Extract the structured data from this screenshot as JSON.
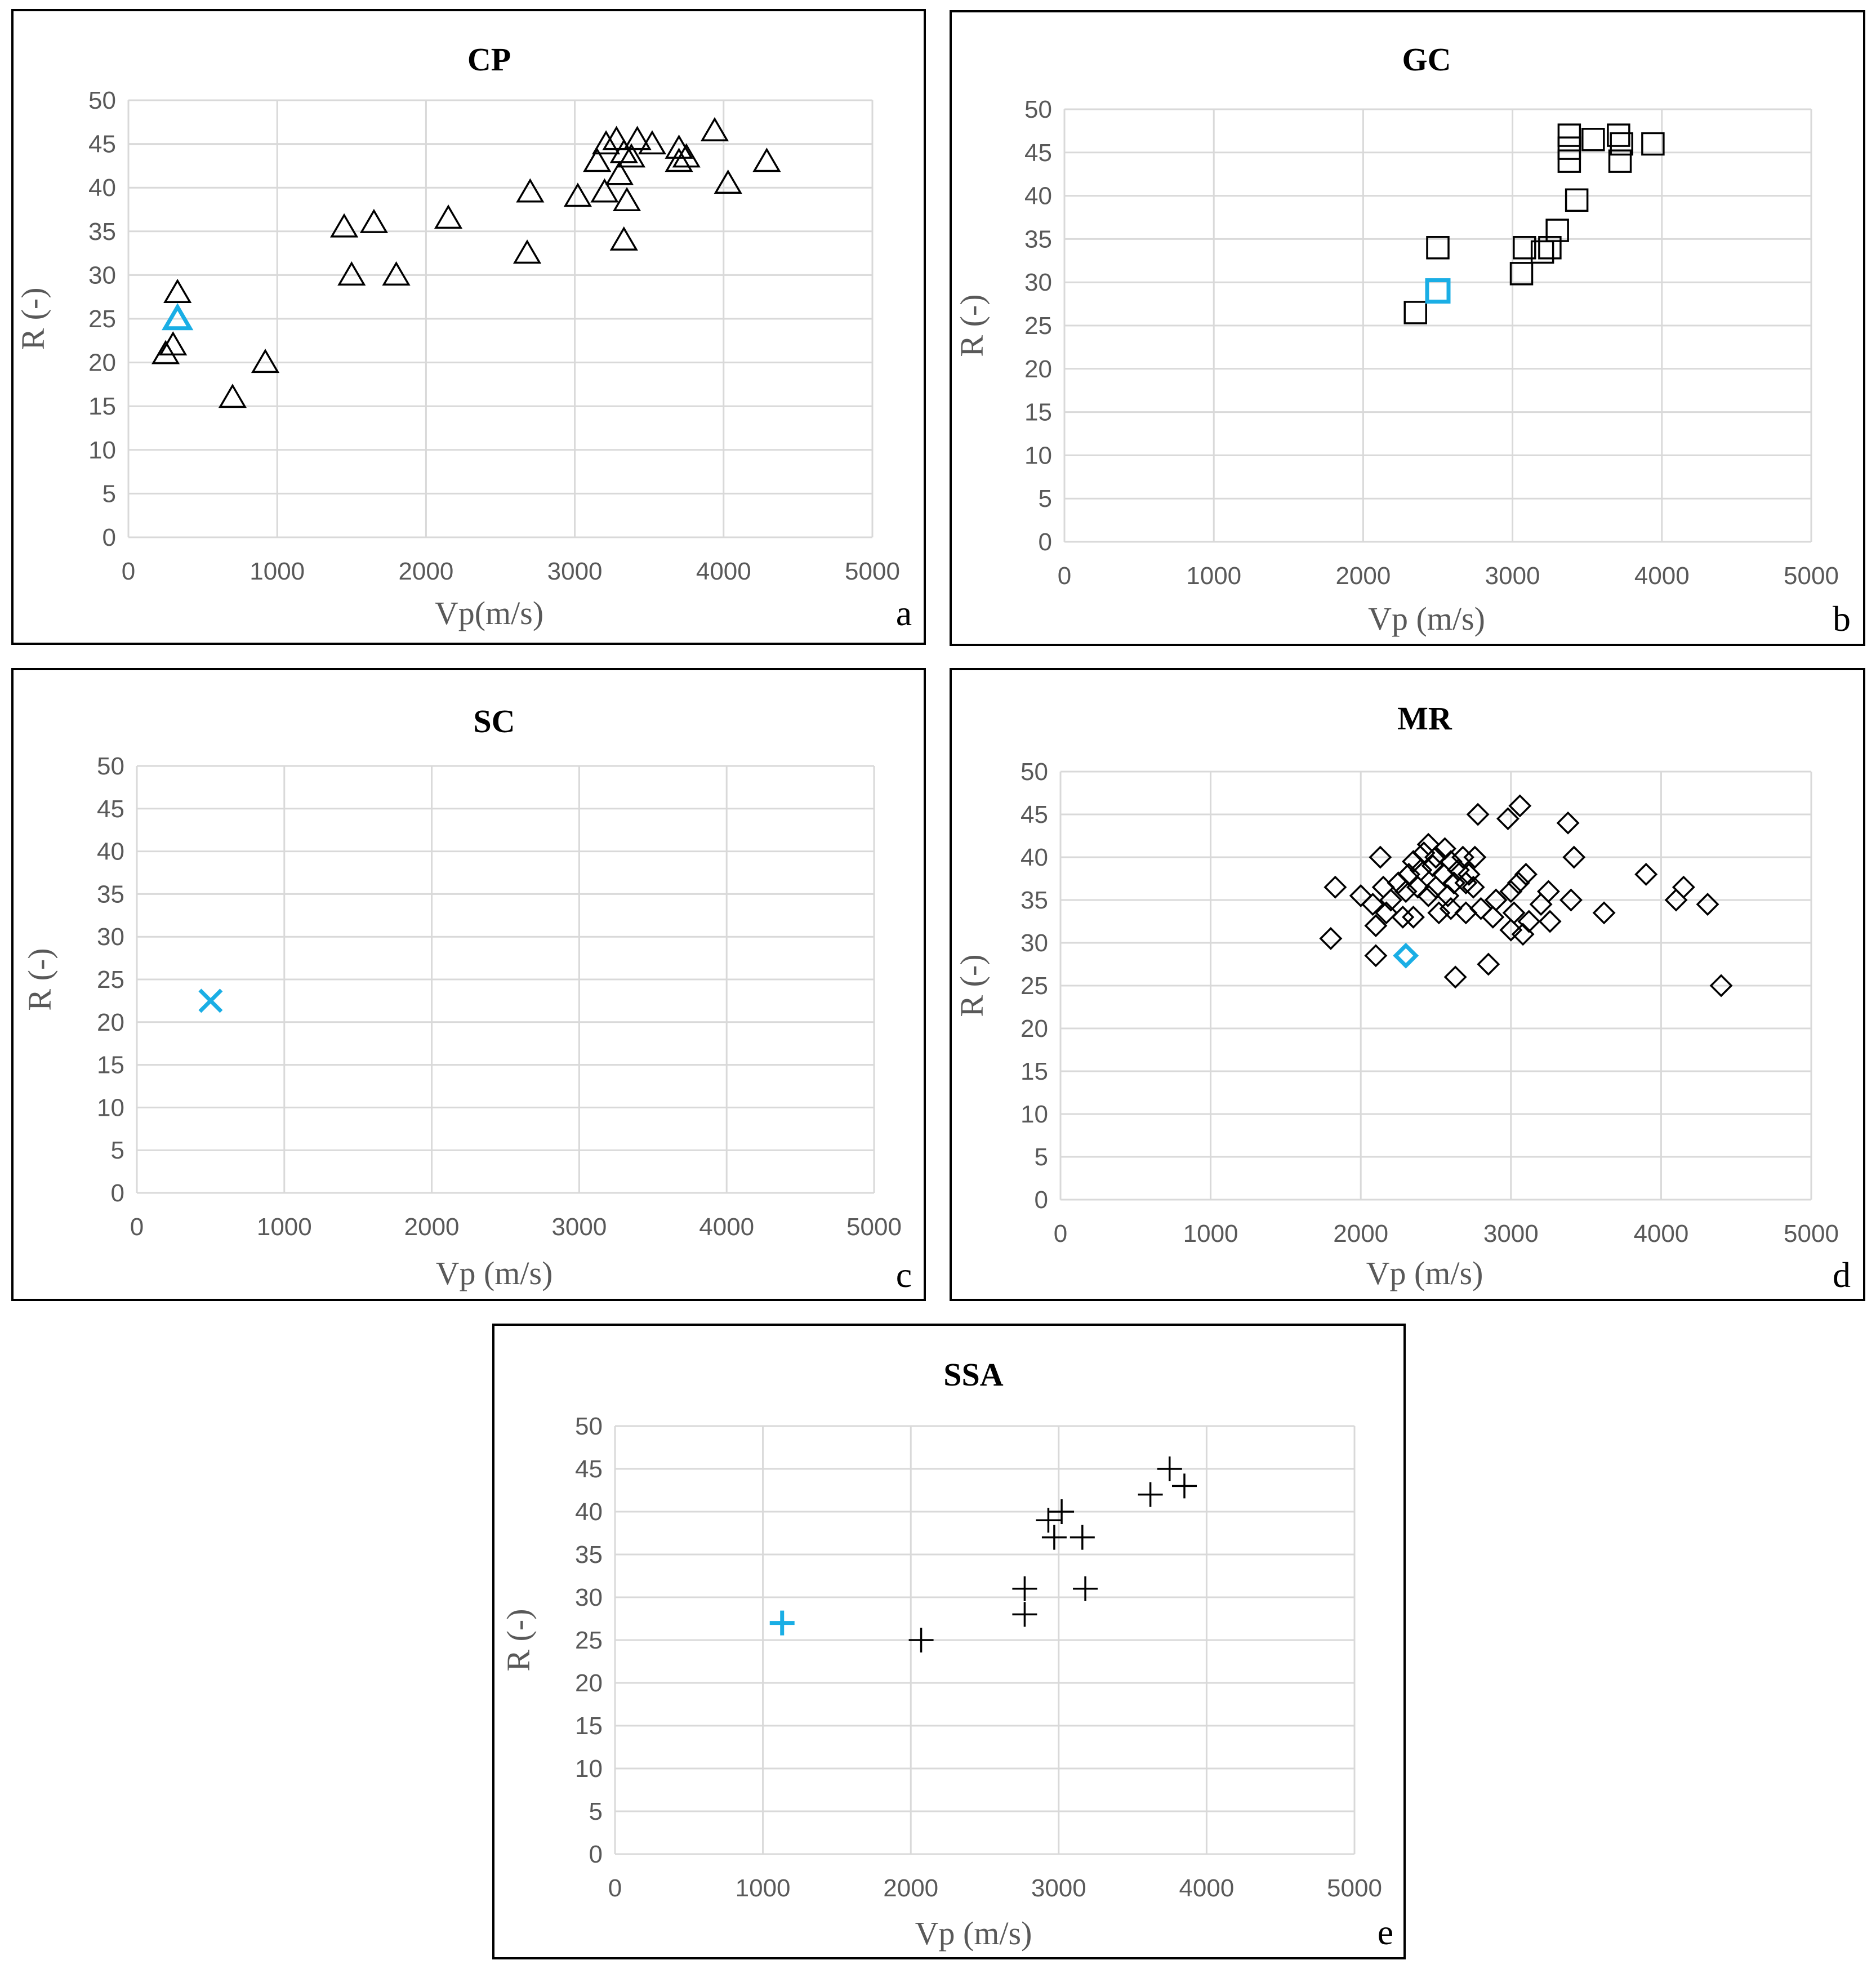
{
  "chart_data": [
    {
      "type": "scatter",
      "title": "CP",
      "panel_letter": "a",
      "xlabel": "Vp(m/s)",
      "ylabel": "R (-)",
      "xlim": [
        0,
        5000
      ],
      "ylim": [
        0,
        50
      ],
      "x_ticks": [
        "0",
        "1000",
        "2000",
        "3000",
        "4000",
        "5000"
      ],
      "y_ticks": [
        "0",
        "5",
        "10",
        "15",
        "20",
        "25",
        "30",
        "35",
        "40",
        "45",
        "50"
      ],
      "marker": "triangle",
      "colors": {
        "normal": "#000000",
        "highlight": "#1aaee5"
      },
      "series": [
        {
          "name": "data",
          "points": [
            [
              330,
              28
            ],
            [
              300,
              22
            ],
            [
              250,
              21
            ],
            [
              700,
              16
            ],
            [
              920,
              20
            ],
            [
              1450,
              35.5
            ],
            [
              1500,
              30
            ],
            [
              1650,
              36
            ],
            [
              1800,
              30
            ],
            [
              2150,
              36.5
            ],
            [
              2680,
              32.5
            ],
            [
              2700,
              39.5
            ],
            [
              3020,
              39
            ],
            [
              3150,
              43
            ],
            [
              3200,
              39.5
            ],
            [
              3210,
              45
            ],
            [
              3280,
              45.5
            ],
            [
              3300,
              41.5
            ],
            [
              3330,
              44
            ],
            [
              3330,
              34
            ],
            [
              3350,
              38.5
            ],
            [
              3380,
              43.5
            ],
            [
              3420,
              45.5
            ],
            [
              3520,
              45
            ],
            [
              3700,
              43
            ],
            [
              3700,
              44.5
            ],
            [
              3750,
              43.5
            ],
            [
              3940,
              46.5
            ],
            [
              4030,
              40.5
            ],
            [
              4290,
              43
            ]
          ]
        },
        {
          "name": "highlight",
          "points": [
            [
              330,
              25
            ]
          ]
        }
      ]
    },
    {
      "type": "scatter",
      "title": "GC",
      "panel_letter": "b",
      "xlabel": "Vp (m/s)",
      "ylabel": "R (-)",
      "xlim": [
        0,
        5000
      ],
      "ylim": [
        0,
        50
      ],
      "x_ticks": [
        "0",
        "1000",
        "2000",
        "3000",
        "4000",
        "5000"
      ],
      "y_ticks": [
        "0",
        "5",
        "10",
        "15",
        "20",
        "25",
        "30",
        "35",
        "40",
        "45",
        "50"
      ],
      "marker": "square",
      "colors": {
        "normal": "#000000",
        "highlight": "#1aaee5"
      },
      "series": [
        {
          "name": "data",
          "points": [
            [
              2350,
              26.5
            ],
            [
              2500,
              34
            ],
            [
              3060,
              31
            ],
            [
              3080,
              34
            ],
            [
              3200,
              33.5
            ],
            [
              3250,
              34
            ],
            [
              3300,
              36
            ],
            [
              3380,
              44
            ],
            [
              3380,
              45.5
            ],
            [
              3380,
              47
            ],
            [
              3430,
              39.5
            ],
            [
              3540,
              46.5
            ],
            [
              3710,
              47
            ],
            [
              3720,
              44
            ],
            [
              3730,
              46
            ],
            [
              3940,
              46
            ]
          ]
        },
        {
          "name": "highlight",
          "points": [
            [
              2500,
              29
            ]
          ]
        }
      ]
    },
    {
      "type": "scatter",
      "title": "SC",
      "panel_letter": "c",
      "xlabel": "Vp (m/s)",
      "ylabel": "R (-)",
      "xlim": [
        0,
        5000
      ],
      "ylim": [
        0,
        50
      ],
      "x_ticks": [
        "0",
        "1000",
        "2000",
        "3000",
        "4000",
        "5000"
      ],
      "y_ticks": [
        "0",
        "5",
        "10",
        "15",
        "20",
        "25",
        "30",
        "35",
        "40",
        "45",
        "50"
      ],
      "marker": "x",
      "colors": {
        "normal": "#000000",
        "highlight": "#1aaee5"
      },
      "series": [
        {
          "name": "data",
          "points": []
        },
        {
          "name": "highlight",
          "points": [
            [
              500,
              22.5
            ]
          ]
        }
      ]
    },
    {
      "type": "scatter",
      "title": "MR",
      "panel_letter": "d",
      "xlabel": "Vp (m/s)",
      "ylabel": "R (-)",
      "xlim": [
        0,
        5000
      ],
      "ylim": [
        0,
        50
      ],
      "x_ticks": [
        "0",
        "1000",
        "2000",
        "3000",
        "4000",
        "5000"
      ],
      "y_ticks": [
        "0",
        "5",
        "10",
        "15",
        "20",
        "25",
        "30",
        "35",
        "40",
        "45",
        "50"
      ],
      "marker": "diamond",
      "colors": {
        "normal": "#000000",
        "highlight": "#1aaee5"
      },
      "series": [
        {
          "name": "data",
          "points": [
            [
              1800,
              30.5
            ],
            [
              1830,
              36.5
            ],
            [
              2000,
              35.5
            ],
            [
              2080,
              34.5
            ],
            [
              2100,
              32
            ],
            [
              2100,
              28.5
            ],
            [
              2130,
              40
            ],
            [
              2150,
              36.5
            ],
            [
              2170,
              33.5
            ],
            [
              2200,
              35
            ],
            [
              2250,
              37
            ],
            [
              2280,
              33
            ],
            [
              2300,
              36
            ],
            [
              2320,
              38
            ],
            [
              2350,
              39.5
            ],
            [
              2350,
              33
            ],
            [
              2380,
              36.5
            ],
            [
              2400,
              38.5
            ],
            [
              2420,
              40.5
            ],
            [
              2450,
              41.5
            ],
            [
              2450,
              35.5
            ],
            [
              2480,
              39
            ],
            [
              2500,
              40
            ],
            [
              2500,
              36.5
            ],
            [
              2520,
              33.5
            ],
            [
              2550,
              38
            ],
            [
              2560,
              41
            ],
            [
              2580,
              35.5
            ],
            [
              2600,
              34
            ],
            [
              2600,
              39.5
            ],
            [
              2620,
              37
            ],
            [
              2630,
              26
            ],
            [
              2650,
              38.5
            ],
            [
              2680,
              40
            ],
            [
              2700,
              37
            ],
            [
              2700,
              33.5
            ],
            [
              2720,
              38
            ],
            [
              2750,
              36.5
            ],
            [
              2760,
              40
            ],
            [
              2780,
              45
            ],
            [
              2800,
              34
            ],
            [
              2850,
              27.5
            ],
            [
              2880,
              33
            ],
            [
              2900,
              35
            ],
            [
              2980,
              44.5
            ],
            [
              3000,
              36
            ],
            [
              3000,
              31.5
            ],
            [
              3020,
              33.5
            ],
            [
              3050,
              37
            ],
            [
              3060,
              46
            ],
            [
              3080,
              31
            ],
            [
              3100,
              38
            ],
            [
              3120,
              32.5
            ],
            [
              3200,
              34.5
            ],
            [
              3250,
              36
            ],
            [
              3260,
              32.5
            ],
            [
              3380,
              44
            ],
            [
              3400,
              35
            ],
            [
              3420,
              40
            ],
            [
              3620,
              33.5
            ],
            [
              3900,
              38
            ],
            [
              4100,
              35
            ],
            [
              4150,
              36.5
            ],
            [
              4310,
              34.5
            ],
            [
              4400,
              25
            ]
          ]
        },
        {
          "name": "highlight",
          "points": [
            [
              2300,
              28.5
            ]
          ]
        }
      ]
    },
    {
      "type": "scatter",
      "title": "SSA",
      "panel_letter": "e",
      "xlabel": "Vp (m/s)",
      "ylabel": "R (-)",
      "xlim": [
        0,
        5000
      ],
      "ylim": [
        0,
        50
      ],
      "x_ticks": [
        "0",
        "1000",
        "2000",
        "3000",
        "4000",
        "5000"
      ],
      "y_ticks": [
        "0",
        "5",
        "10",
        "15",
        "20",
        "25",
        "30",
        "35",
        "40",
        "45",
        "50"
      ],
      "marker": "plus",
      "colors": {
        "normal": "#000000",
        "highlight": "#1aaee5"
      },
      "series": [
        {
          "name": "data",
          "points": [
            [
              2070,
              25
            ],
            [
              2770,
              28
            ],
            [
              2770,
              31
            ],
            [
              2930,
              39
            ],
            [
              2970,
              37
            ],
            [
              3020,
              40
            ],
            [
              3160,
              37
            ],
            [
              3180,
              31
            ],
            [
              3620,
              42
            ],
            [
              3750,
              45
            ],
            [
              3850,
              43
            ]
          ]
        },
        {
          "name": "highlight",
          "points": [
            [
              1130,
              27
            ]
          ]
        }
      ]
    }
  ]
}
